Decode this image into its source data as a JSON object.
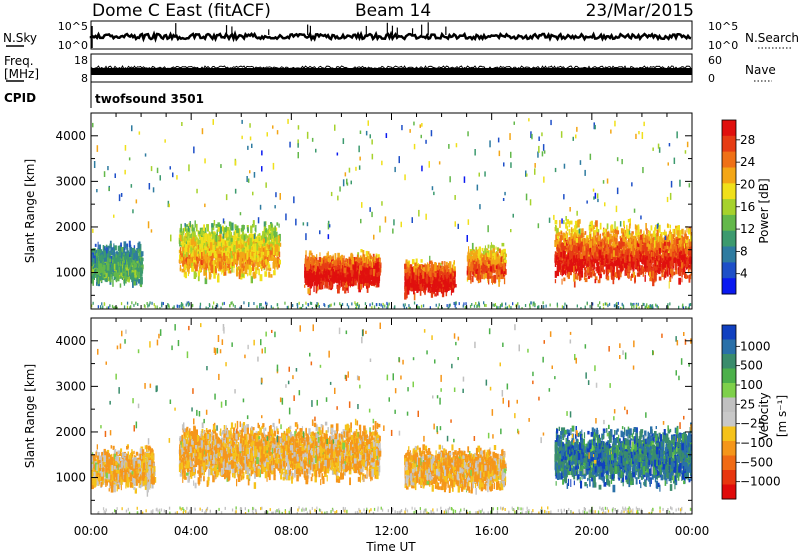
{
  "header": {
    "station": "Dome C East (fitACF)",
    "beam": "Beam 14",
    "date": "23/Mar/2015"
  },
  "status_panels": {
    "nsky": {
      "left_label": "N.Sky",
      "left_ticks": [
        "10^5",
        "10^0"
      ],
      "right_label": "N.Search",
      "right_ticks": [
        "10^5",
        "10^0"
      ]
    },
    "freq": {
      "left_label_1": "Freq.",
      "left_label_2": "[MHz]",
      "left_ticks": [
        "18",
        "8"
      ],
      "right_label": "Nave",
      "right_ticks": [
        "60",
        "0"
      ]
    },
    "cpid": {
      "label": "CPID",
      "value": "twofsound 3501"
    }
  },
  "chart_data": [
    {
      "type": "heatmap",
      "quantity": "Power",
      "ylabel": "Slant Range [km]",
      "ylim": [
        200,
        4500
      ],
      "yticks": [
        "1000",
        "2000",
        "3000",
        "4000"
      ],
      "xlim": [
        "00:00",
        "24:00"
      ],
      "colorbar_label": "Power [dB]",
      "colorbar_ticks": [
        "4",
        "8",
        "12",
        "16",
        "20",
        "24",
        "28"
      ],
      "colorbar_colors": [
        "#0a19f0",
        "#1e4fc8",
        "#2e7ba0",
        "#3c9a6e",
        "#63b84a",
        "#a6d22c",
        "#f0e01a",
        "#f3a616",
        "#ef7016",
        "#e63c14",
        "#e0100e"
      ],
      "features": [
        {
          "x_start": "00:00",
          "x_end": "02:00",
          "range_min": 600,
          "range_max": 1800,
          "value": 12
        },
        {
          "x_start": "03:30",
          "x_end": "07:30",
          "range_min": 700,
          "range_max": 2300,
          "value": 20
        },
        {
          "x_start": "08:30",
          "x_end": "11:30",
          "range_min": 500,
          "range_max": 1600,
          "value": 28
        },
        {
          "x_start": "12:30",
          "x_end": "14:30",
          "range_min": 400,
          "range_max": 1400,
          "value": 28
        },
        {
          "x_start": "15:00",
          "x_end": "16:30",
          "range_min": 700,
          "range_max": 1700,
          "value": 24
        },
        {
          "x_start": "18:30",
          "x_end": "24:00",
          "range_min": 600,
          "range_max": 2300,
          "value": 26
        }
      ]
    },
    {
      "type": "heatmap",
      "quantity": "Velocity",
      "ylabel": "Slant Range [km]",
      "ylim": [
        200,
        4500
      ],
      "yticks": [
        "1000",
        "2000",
        "3000",
        "4000"
      ],
      "xlim": [
        "00:00",
        "24:00"
      ],
      "xlabel": "Time UT",
      "xticks": [
        "00:00",
        "04:00",
        "08:00",
        "12:00",
        "16:00",
        "20:00",
        "00:00"
      ],
      "colorbar_label": "Velocity",
      "colorbar_unit": "[m s⁻¹]",
      "colorbar_ticks": [
        "1000",
        "500",
        "100",
        "25",
        "−25",
        "−100",
        "−500",
        "−1000"
      ],
      "colorbar_colors": [
        "#1040c0",
        "#2a70a8",
        "#3a8c6c",
        "#4cb04a",
        "#7ed04a",
        "#c0c0c0",
        "#c8c8c8",
        "#f5c21a",
        "#f5961a",
        "#f06a14",
        "#e8360f",
        "#e00a0a"
      ],
      "features": [
        {
          "x_start": "00:00",
          "x_end": "02:30",
          "range_min": 600,
          "range_max": 1800,
          "value": -100
        },
        {
          "x_start": "03:30",
          "x_end": "11:30",
          "range_min": 700,
          "range_max": 2400,
          "value": -100
        },
        {
          "x_start": "12:30",
          "x_end": "16:30",
          "range_min": 600,
          "range_max": 1800,
          "value": -100
        },
        {
          "x_start": "18:30",
          "x_end": "24:00",
          "range_min": 600,
          "range_max": 2300,
          "value": 500
        }
      ]
    }
  ]
}
